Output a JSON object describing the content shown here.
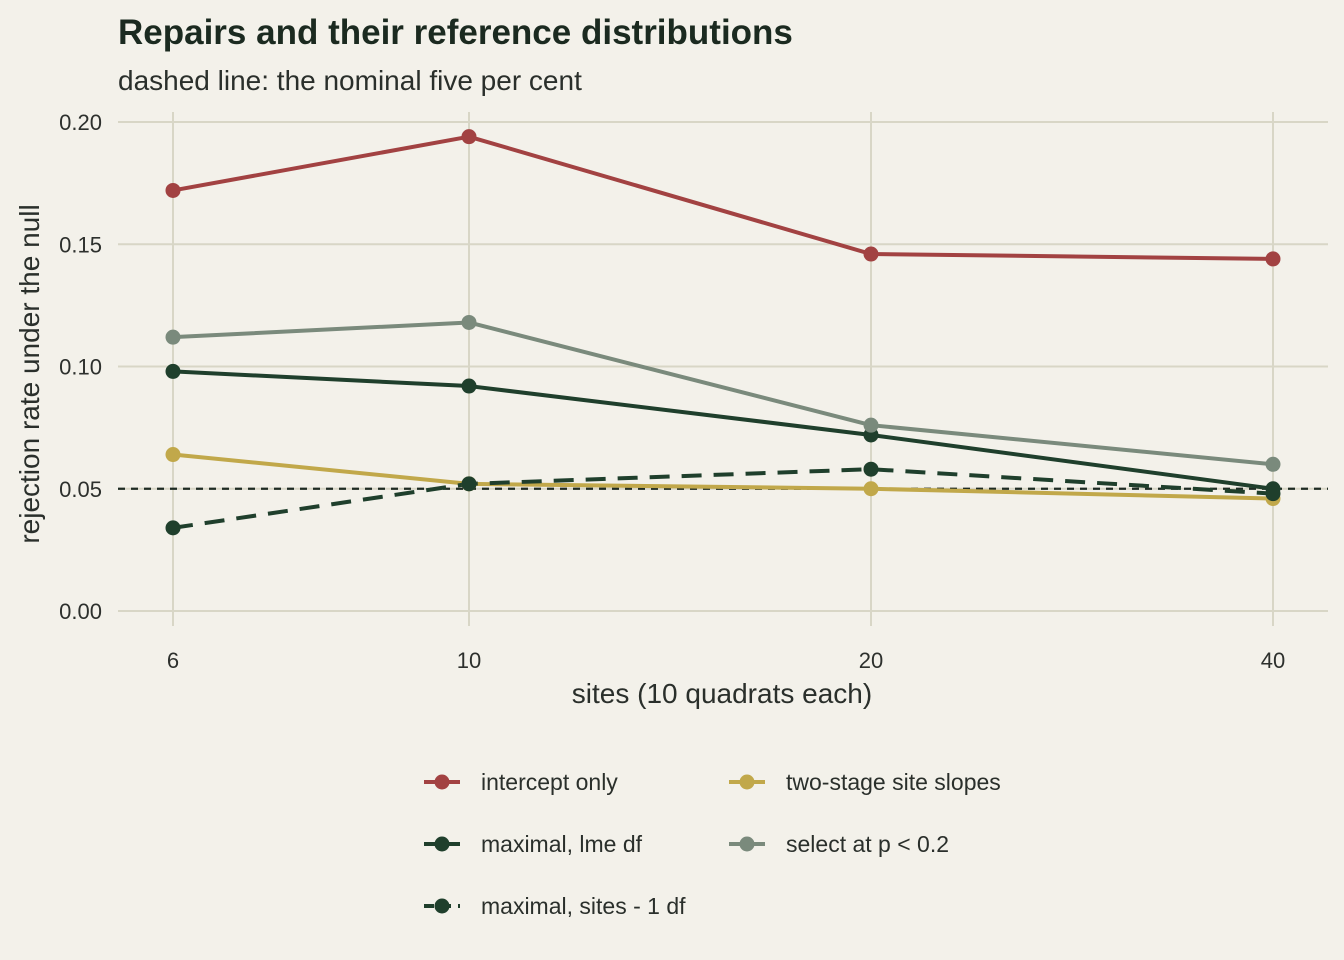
{
  "chart_data": {
    "type": "line",
    "title": "Repairs and their reference distributions",
    "subtitle": "dashed line: the nominal five per cent",
    "xlabel": "sites (10 quadrats each)",
    "ylabel": "rejection rate under the null",
    "x_scale": "log",
    "x": [
      6,
      10,
      20,
      40
    ],
    "x_tick_labels": [
      "6",
      "10",
      "20",
      "40"
    ],
    "y_ticks": [
      0.0,
      0.05,
      0.1,
      0.15,
      0.2
    ],
    "y_tick_labels": [
      "0.00",
      "0.05",
      "0.10",
      "0.15",
      "0.20"
    ],
    "ylim": [
      0,
      0.2
    ],
    "reference_line": {
      "y": 0.05,
      "style": "dashed",
      "color": "#1e2b23"
    },
    "grid": true,
    "legend_position": "bottom",
    "series": [
      {
        "name": "intercept only",
        "values": [
          0.172,
          0.194,
          0.146,
          0.144
        ],
        "color": "#a24242",
        "dash": "solid"
      },
      {
        "name": "two-stage site slopes",
        "values": [
          0.064,
          0.052,
          0.05,
          0.046
        ],
        "color": "#c1a84a",
        "dash": "solid"
      },
      {
        "name": "maximal, lme df",
        "values": [
          0.098,
          0.092,
          0.072,
          0.05
        ],
        "color": "#1f3f2c",
        "dash": "solid"
      },
      {
        "name": "select at p < 0.2",
        "values": [
          0.112,
          0.118,
          0.076,
          0.06
        ],
        "color": "#7a8a7c",
        "dash": "solid"
      },
      {
        "name": "maximal, sites - 1 df",
        "values": [
          0.034,
          0.052,
          0.058,
          0.048
        ],
        "color": "#1f3f2c",
        "dash": "dashed"
      }
    ]
  }
}
